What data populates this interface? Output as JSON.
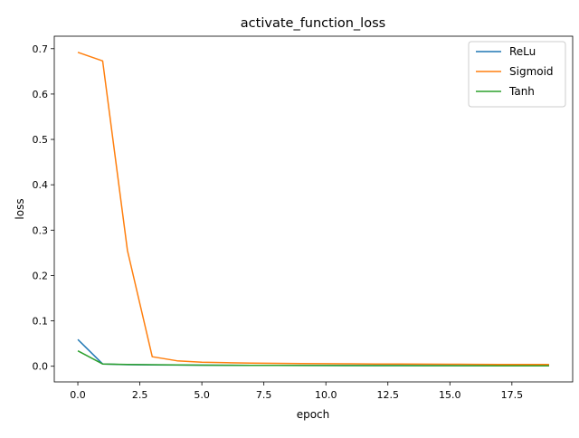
{
  "chart_data": {
    "type": "line",
    "title": "activate_function_loss",
    "xlabel": "epoch",
    "ylabel": "loss",
    "xlim": [
      -0.95,
      19.95
    ],
    "ylim": [
      -0.0345,
      0.7275
    ],
    "xticks": [
      0,
      2.5,
      5,
      7.5,
      10,
      12.5,
      15,
      17.5
    ],
    "xtick_labels": [
      "0.0",
      "2.5",
      "5.0",
      "7.5",
      "10.0",
      "12.5",
      "15.0",
      "17.5"
    ],
    "yticks": [
      0,
      0.1,
      0.2,
      0.3,
      0.4,
      0.5,
      0.6,
      0.7
    ],
    "ytick_labels": [
      "0.0",
      "0.1",
      "0.2",
      "0.3",
      "0.4",
      "0.5",
      "0.6",
      "0.7"
    ],
    "grid": false,
    "legend_position": "upper right",
    "x": [
      0,
      1,
      2,
      3,
      4,
      5,
      6,
      7,
      8,
      9,
      10,
      11,
      12,
      13,
      14,
      15,
      16,
      17,
      18,
      19
    ],
    "series": [
      {
        "name": "ReLu",
        "color": "#1f77b4",
        "values": [
          0.059,
          0.005,
          0.0035,
          0.003,
          0.0027,
          0.0024,
          0.0022,
          0.002,
          0.0019,
          0.0018,
          0.0017,
          0.0016,
          0.0015,
          0.0014,
          0.0013,
          0.0013,
          0.0012,
          0.0012,
          0.0011,
          0.0011
        ]
      },
      {
        "name": "Sigmoid",
        "color": "#ff7f0e",
        "values": [
          0.692,
          0.673,
          0.255,
          0.021,
          0.012,
          0.009,
          0.0078,
          0.007,
          0.0064,
          0.006,
          0.0056,
          0.0053,
          0.005,
          0.0048,
          0.0046,
          0.0044,
          0.0042,
          0.004,
          0.0039,
          0.0038
        ]
      },
      {
        "name": "Tanh",
        "color": "#2ca02c",
        "values": [
          0.034,
          0.005,
          0.004,
          0.0033,
          0.0029,
          0.0025,
          0.0022,
          0.002,
          0.0018,
          0.0017,
          0.0016,
          0.0015,
          0.0014,
          0.0013,
          0.0012,
          0.0011,
          0.0011,
          0.001,
          0.001,
          0.0009
        ]
      }
    ]
  }
}
